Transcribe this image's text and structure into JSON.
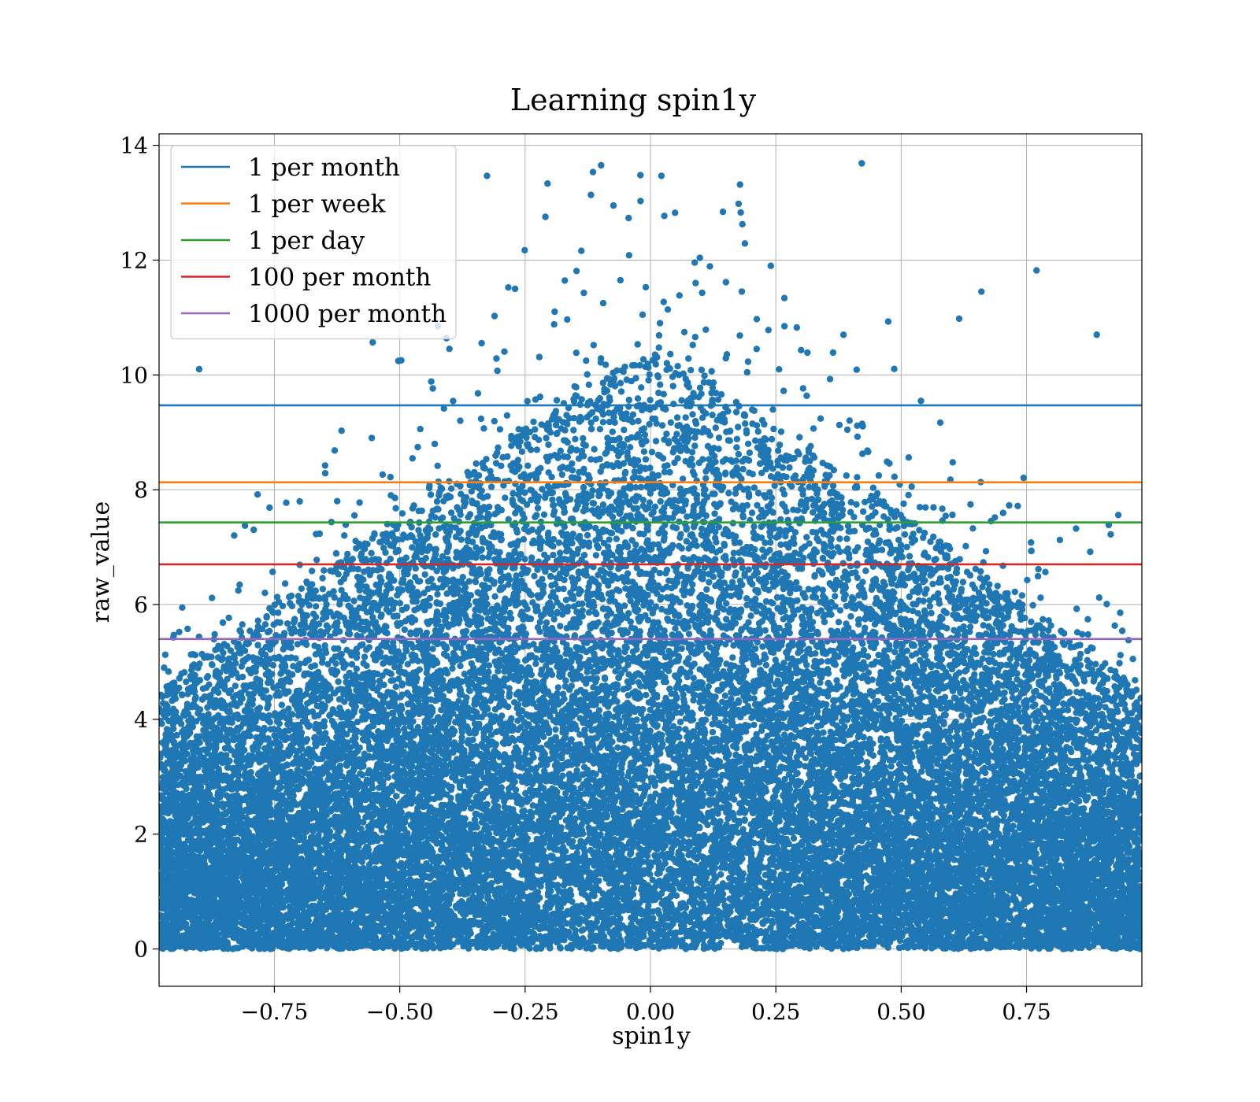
{
  "chart_data": {
    "type": "scatter",
    "title": "Learning spin1y",
    "xlabel": "spin1y",
    "ylabel": "raw_value",
    "xlim": [
      -0.98,
      0.98
    ],
    "ylim": [
      -0.65,
      14.2
    ],
    "xticks": [
      -0.75,
      -0.5,
      -0.25,
      0.0,
      0.25,
      0.5,
      0.75
    ],
    "xtick_labels": [
      "−0.75",
      "−0.50",
      "−0.25",
      "0.00",
      "0.25",
      "0.50",
      "0.75"
    ],
    "yticks": [
      0,
      2,
      4,
      6,
      8,
      10,
      12,
      14
    ],
    "ytick_labels": [
      "0",
      "2",
      "4",
      "6",
      "8",
      "10",
      "12",
      "14"
    ],
    "grid": true,
    "legend_position": "top-left",
    "point_color": "#1f77b4",
    "hlines": [
      {
        "name": "1 per month",
        "y": 9.47,
        "color": "#1f77b4"
      },
      {
        "name": "1 per week",
        "y": 8.13,
        "color": "#ff7f0e"
      },
      {
        "name": "1 per day",
        "y": 7.43,
        "color": "#2ca02c"
      },
      {
        "name": "100 per month",
        "y": 6.7,
        "color": "#d62728"
      },
      {
        "name": "1000 per month",
        "y": 5.4,
        "color": "#9467bd"
      }
    ],
    "highlight_points": [
      {
        "x": -0.02,
        "y": 13.48
      },
      {
        "x": 0.18,
        "y": 12.83
      },
      {
        "x": 0.24,
        "y": 11.9
      },
      {
        "x": 0.77,
        "y": 11.82
      },
      {
        "x": -0.06,
        "y": 11.65
      },
      {
        "x": 0.09,
        "y": 11.6
      },
      {
        "x": -0.27,
        "y": 11.5
      },
      {
        "x": 0.66,
        "y": 11.45
      },
      {
        "x": -0.97,
        "y": 4.9
      },
      {
        "x": -0.96,
        "y": 3.45
      },
      {
        "x": 0.97,
        "y": 2.15
      },
      {
        "x": 0.98,
        "y": 0.9
      },
      {
        "x": 0.89,
        "y": 10.7
      },
      {
        "x": -0.9,
        "y": 10.1
      }
    ],
    "density_description": {
      "n_points": 26000,
      "x_distribution": "uniform on [-0.98, 0.98]",
      "y_peak_at_x0": 10.4,
      "y_peak_at_edges": 4.5
    }
  }
}
